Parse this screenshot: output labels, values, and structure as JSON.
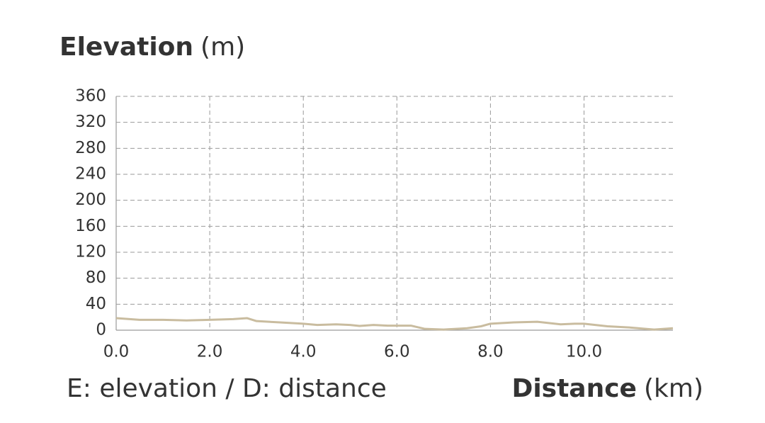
{
  "chart_data": {
    "type": "line",
    "ylabel": "Elevation",
    "yunit": "(m)",
    "xlabel": "Distance",
    "xunit": "(km)",
    "note": "E: elevation / D: distance",
    "x": [
      0.0,
      0.5,
      1.0,
      1.5,
      2.0,
      2.5,
      2.8,
      3.0,
      3.5,
      4.0,
      4.3,
      4.7,
      5.0,
      5.2,
      5.5,
      5.8,
      6.3,
      6.6,
      7.0,
      7.5,
      7.8,
      8.0,
      8.5,
      9.0,
      9.5,
      9.8,
      10.0,
      10.5,
      11.0,
      11.5,
      11.9
    ],
    "series": [
      {
        "name": "Elevation",
        "color": "#c9bc9f",
        "values": [
          18.5,
          16,
          16,
          15,
          16,
          17,
          18.5,
          14,
          12,
          10,
          8,
          9,
          8,
          6.5,
          8,
          7,
          7,
          2,
          1,
          3,
          6,
          10,
          12,
          13,
          9,
          10,
          10,
          6,
          4,
          1,
          3
        ]
      }
    ],
    "xlim": [
      0,
      11.9
    ],
    "xticks": [
      {
        "value": 0,
        "label": "0.0"
      },
      {
        "value": 2,
        "label": "2.0"
      },
      {
        "value": 4,
        "label": "4.0"
      },
      {
        "value": 6,
        "label": "6.0"
      },
      {
        "value": 8,
        "label": "8.0"
      },
      {
        "value": 10,
        "label": "10.0"
      }
    ],
    "ylim": [
      0,
      360
    ],
    "yticks": [
      0,
      40,
      80,
      120,
      160,
      200,
      240,
      280,
      320,
      360
    ],
    "grid": true
  }
}
